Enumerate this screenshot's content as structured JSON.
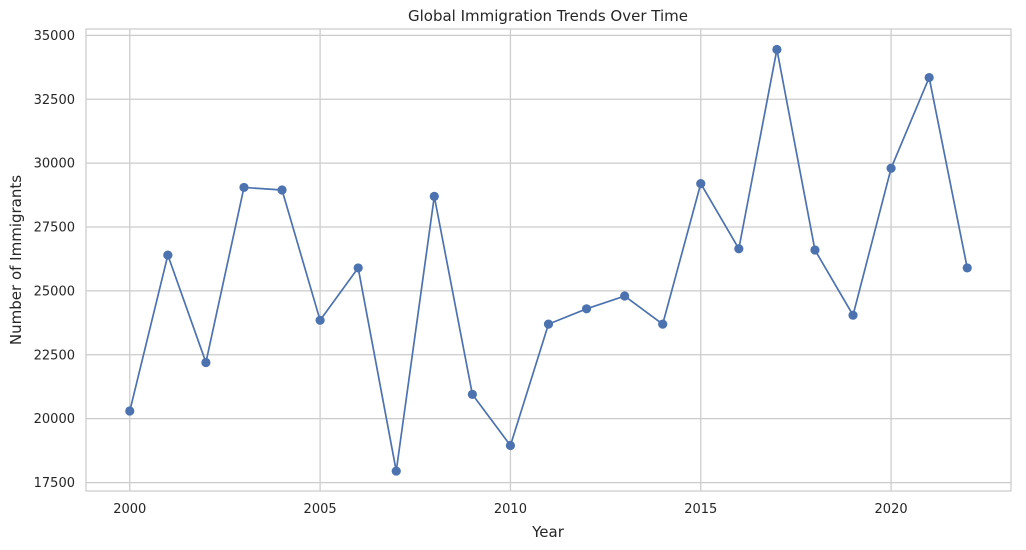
{
  "chart_data": {
    "type": "line",
    "title": "Global Immigration Trends Over Time",
    "xlabel": "Year",
    "ylabel": "Number of Immigrants",
    "xlim": [
      1998.85,
      2023.15
    ],
    "ylim": [
      17170,
      35250
    ],
    "x_ticks": [
      2000,
      2005,
      2010,
      2015,
      2020
    ],
    "y_ticks": [
      17500,
      20000,
      22500,
      25000,
      27500,
      30000,
      32500,
      35000
    ],
    "grid": true,
    "legend": "none",
    "series_color": "#4c72b0",
    "series": [
      {
        "x": [
          2000,
          2001,
          2002,
          2003,
          2004,
          2005,
          2006,
          2007,
          2008,
          2009,
          2010,
          2011,
          2012,
          2013,
          2014,
          2015,
          2016,
          2017,
          2018,
          2019,
          2020,
          2021,
          2022
        ],
        "values": [
          20300,
          26400,
          22200,
          29050,
          28950,
          23850,
          25900,
          17950,
          28700,
          20950,
          18950,
          23700,
          24300,
          24800,
          23700,
          29200,
          26650,
          34450,
          26600,
          24050,
          29800,
          33350,
          25900
        ]
      }
    ]
  }
}
